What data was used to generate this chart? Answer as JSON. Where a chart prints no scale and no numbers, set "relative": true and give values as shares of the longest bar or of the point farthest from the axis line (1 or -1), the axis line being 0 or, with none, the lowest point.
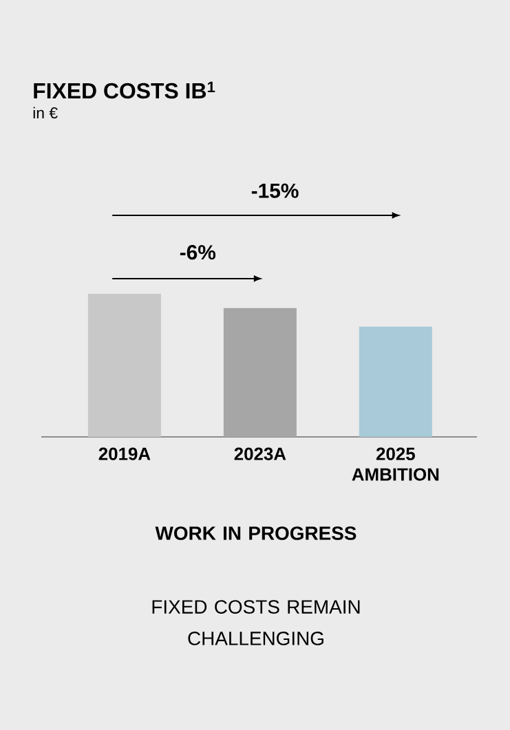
{
  "chart_data": {
    "type": "bar",
    "title": "FIXED COSTS IB$^{1}$",
    "subtitle": "in €",
    "categories": [
      "2019A",
      "2023A",
      "2025 AMBITION"
    ],
    "values": [
      1,
      0.9,
      0.77
    ],
    "colors": [
      "#c8c8c8",
      "#a6a6a6",
      "#a8cad9"
    ],
    "relative": true,
    "annotations": [
      "-15%",
      "-6%",
      "WORK IN PROGRESS",
      "FIXED COSTS REMAIN CHALLENGING"
    ]
  }
}
